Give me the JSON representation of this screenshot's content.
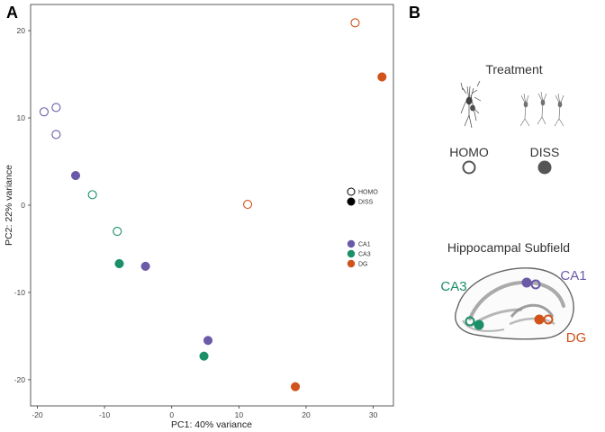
{
  "panel_a_label": "A",
  "panel_b_label": "B",
  "chart_data": {
    "type": "scatter",
    "xlabel": "PC1: 40% variance",
    "ylabel": "PC2: 22% variance",
    "xlim": [
      -21,
      33
    ],
    "ylim": [
      -23,
      23
    ],
    "x_ticks": [
      -20,
      -10,
      0,
      10,
      20,
      30
    ],
    "y_ticks": [
      -20,
      -10,
      0,
      10,
      20
    ],
    "grid": false,
    "legend_treatment": [
      {
        "label": "HOMO",
        "fill": false
      },
      {
        "label": "DISS",
        "fill": true
      }
    ],
    "legend_subfield": [
      {
        "label": "CA1",
        "color": "#6a5aa8"
      },
      {
        "label": "CA3",
        "color": "#1b8f67"
      },
      {
        "label": "DG",
        "color": "#d2521b"
      }
    ],
    "points": [
      {
        "x": -19,
        "y": 10.7,
        "subfield": "CA1",
        "treatment": "HOMO"
      },
      {
        "x": -17.2,
        "y": 11.2,
        "subfield": "CA1",
        "treatment": "HOMO"
      },
      {
        "x": -17.2,
        "y": 8.1,
        "subfield": "CA1",
        "treatment": "HOMO"
      },
      {
        "x": -14.3,
        "y": 3.4,
        "subfield": "CA1",
        "treatment": "DISS"
      },
      {
        "x": -11.8,
        "y": 1.2,
        "subfield": "CA3",
        "treatment": "HOMO"
      },
      {
        "x": -8.1,
        "y": -3.0,
        "subfield": "CA3",
        "treatment": "HOMO"
      },
      {
        "x": -7.8,
        "y": -6.7,
        "subfield": "CA3",
        "treatment": "DISS"
      },
      {
        "x": -3.9,
        "y": -7.0,
        "subfield": "CA1",
        "treatment": "DISS"
      },
      {
        "x": 5.4,
        "y": -15.5,
        "subfield": "CA1",
        "treatment": "DISS"
      },
      {
        "x": 4.8,
        "y": -17.3,
        "subfield": "CA3",
        "treatment": "DISS"
      },
      {
        "x": 11.3,
        "y": 0.1,
        "subfield": "DG",
        "treatment": "HOMO"
      },
      {
        "x": 18.4,
        "y": -20.8,
        "subfield": "DG",
        "treatment": "DISS"
      },
      {
        "x": 27.3,
        "y": 20.9,
        "subfield": "DG",
        "treatment": "HOMO"
      },
      {
        "x": 31.3,
        "y": 14.7,
        "subfield": "DG",
        "treatment": "DISS"
      }
    ]
  },
  "schematic": {
    "treatment_title": "Treatment",
    "homo_label": "HOMO",
    "diss_label": "DISS",
    "subfield_title": "Hippocampal Subfield",
    "ca3_label": "CA3",
    "ca1_label": "CA1",
    "dg_label": "DG",
    "colors": {
      "ca1": "#6a5aa8",
      "ca3": "#1b8f67",
      "dg": "#d2521b",
      "diss": "#555555"
    }
  }
}
